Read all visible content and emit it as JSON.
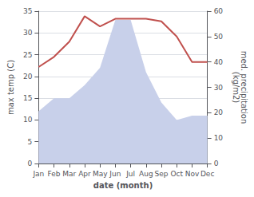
{
  "chart_data": {
    "type": "line",
    "categories": [
      "Jan",
      "Feb",
      "Mar",
      "Apr",
      "May",
      "Jun",
      "Jul",
      "Aug",
      "Sep",
      "Oct",
      "Nov",
      "Dec"
    ],
    "xlabel": "date (month)",
    "ylabel": "max temp (C)",
    "y2label": "med. precipitation\n(kg/m2)",
    "series": [
      {
        "type": "area",
        "color": "#c8d0ea",
        "values": [
          12,
          15,
          15,
          18,
          22,
          33,
          33,
          21,
          14,
          10,
          11,
          11
        ]
      },
      {
        "type": "line",
        "color": "#c0504d",
        "axis": "y2",
        "values": [
          38,
          42,
          48,
          58,
          54,
          57,
          57,
          57,
          56,
          50,
          40,
          40
        ]
      }
    ],
    "ylim": [
      0,
      35
    ],
    "yticks": [
      0,
      5,
      10,
      15,
      20,
      25,
      30,
      35
    ],
    "y2lim": [
      0,
      60
    ],
    "y2ticks": [
      0,
      10,
      20,
      30,
      40,
      50,
      60
    ],
    "grid": true
  }
}
